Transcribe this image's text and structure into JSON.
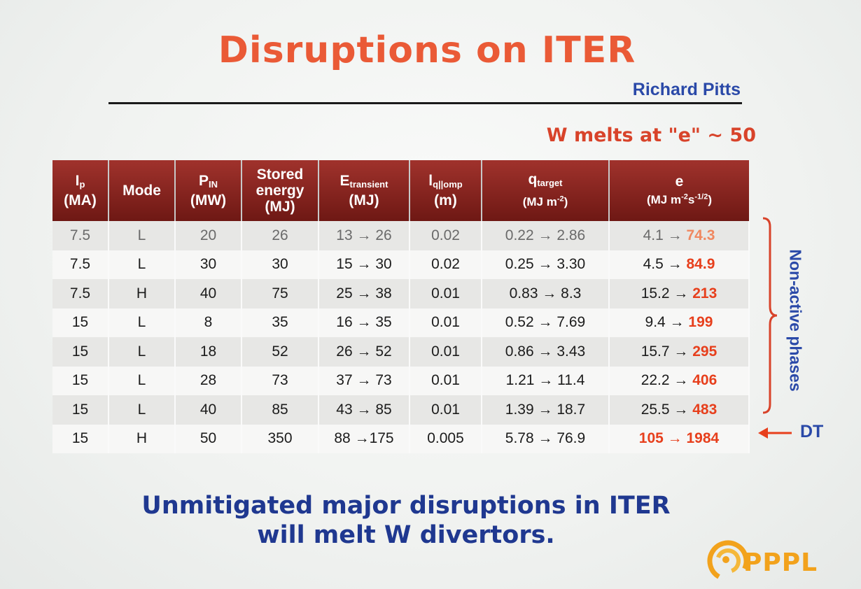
{
  "slide": {
    "title": "Disruptions on ITER",
    "author": "Richard Pitts",
    "note": "W melts at \"e\" ~ 50",
    "side_label": "Non-active phases",
    "dt_label": "DT",
    "conclusion_line1": "Unmitigated major disruptions in ITER",
    "conclusion_line2": "will melt W divertors.",
    "logo_text": "PPPL",
    "colors": {
      "title": "#ea5a36",
      "accent_blue": "#2a49a8",
      "header_bg": "#8b2520",
      "highlight": "#e73f1c",
      "logo": "#f2a21c"
    }
  },
  "table": {
    "headers": {
      "ip": {
        "main": "I",
        "sub": "p",
        "unit": "(MA)"
      },
      "mode": {
        "main": "Mode"
      },
      "pin": {
        "main": "P",
        "sub": "IN",
        "unit": "(MW)"
      },
      "stored": {
        "line1": "Stored",
        "line2": "energy",
        "unit": "(MJ)"
      },
      "etrans": {
        "main": "E",
        "sub": "transient",
        "unit": "(MJ)"
      },
      "lq": {
        "main": "l",
        "sub": "q||omp",
        "unit": "(m)"
      },
      "qtarget": {
        "main": "q",
        "sub": "target",
        "unit_prefix": "(MJ m",
        "unit_sup": "-2",
        "unit_suffix": ")"
      },
      "e": {
        "main": "e",
        "unit_prefix": "(MJ m",
        "unit_sup1": "-2",
        "unit_mid": "s",
        "unit_sup2": "-1/2",
        "unit_suffix": ")"
      }
    },
    "rows": [
      {
        "ip": "7.5",
        "mode": "L",
        "pin": "20",
        "stored": "26",
        "etrans": "13 → 26",
        "lq": "0.02",
        "qtarget": "0.22 → 2.86",
        "e_low": "4.1 →",
        "e_high": "74.3"
      },
      {
        "ip": "7.5",
        "mode": "L",
        "pin": "30",
        "stored": "30",
        "etrans": "15 → 30",
        "lq": "0.02",
        "qtarget": "0.25 → 3.30",
        "e_low": "4.5 →",
        "e_high": "84.9"
      },
      {
        "ip": "7.5",
        "mode": "H",
        "pin": "40",
        "stored": "75",
        "etrans": "25 → 38",
        "lq": "0.01",
        "qtarget": "0.83 → 8.3",
        "e_low": "15.2 →",
        "e_high": "213"
      },
      {
        "ip": "15",
        "mode": "L",
        "pin": "8",
        "stored": "35",
        "etrans": "16 → 35",
        "lq": "0.01",
        "qtarget": "0.52 → 7.69",
        "e_low": "9.4 →",
        "e_high": "199"
      },
      {
        "ip": "15",
        "mode": "L",
        "pin": "18",
        "stored": "52",
        "etrans": "26 → 52",
        "lq": "0.01",
        "qtarget": "0.86 → 3.43",
        "e_low": "15.7 →",
        "e_high": "295"
      },
      {
        "ip": "15",
        "mode": "L",
        "pin": "28",
        "stored": "73",
        "etrans": "37 → 73",
        "lq": "0.01",
        "qtarget": "1.21 → 11.4",
        "e_low": "22.2 →",
        "e_high": "406"
      },
      {
        "ip": "15",
        "mode": "L",
        "pin": "40",
        "stored": "85",
        "etrans": "43 → 85",
        "lq": "0.01",
        "qtarget": "1.39 → 18.7",
        "e_low": "25.5 →",
        "e_high": "483"
      },
      {
        "ip": "15",
        "mode": "H",
        "pin": "50",
        "stored": "350",
        "etrans": "88 →175",
        "lq": "0.005",
        "qtarget": "5.78 → 76.9",
        "e_low": "105 →",
        "e_high": "1984"
      }
    ]
  }
}
